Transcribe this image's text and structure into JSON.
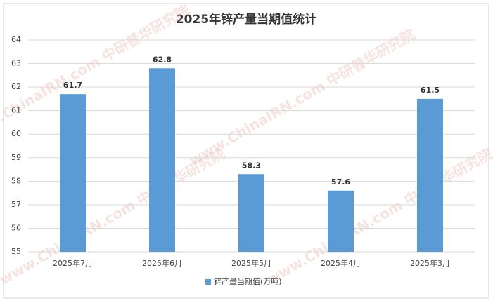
{
  "chart_data": {
    "type": "bar",
    "title": "2025年锌产量当期值统计",
    "categories": [
      "2025年7月",
      "2025年6月",
      "2025年5月",
      "2025年4月",
      "2025年3月"
    ],
    "series": [
      {
        "name": "锌产量当期值(万吨)",
        "color": "#5b9bd5",
        "values": [
          61.7,
          62.8,
          58.3,
          57.6,
          61.5
        ]
      }
    ],
    "ylim": [
      55,
      64
    ],
    "yticks": [
      55,
      56,
      57,
      58,
      59,
      60,
      61,
      62,
      63,
      64
    ],
    "grid": true,
    "watermark": "www.ChinaIRN.com 中研普华研究院"
  }
}
